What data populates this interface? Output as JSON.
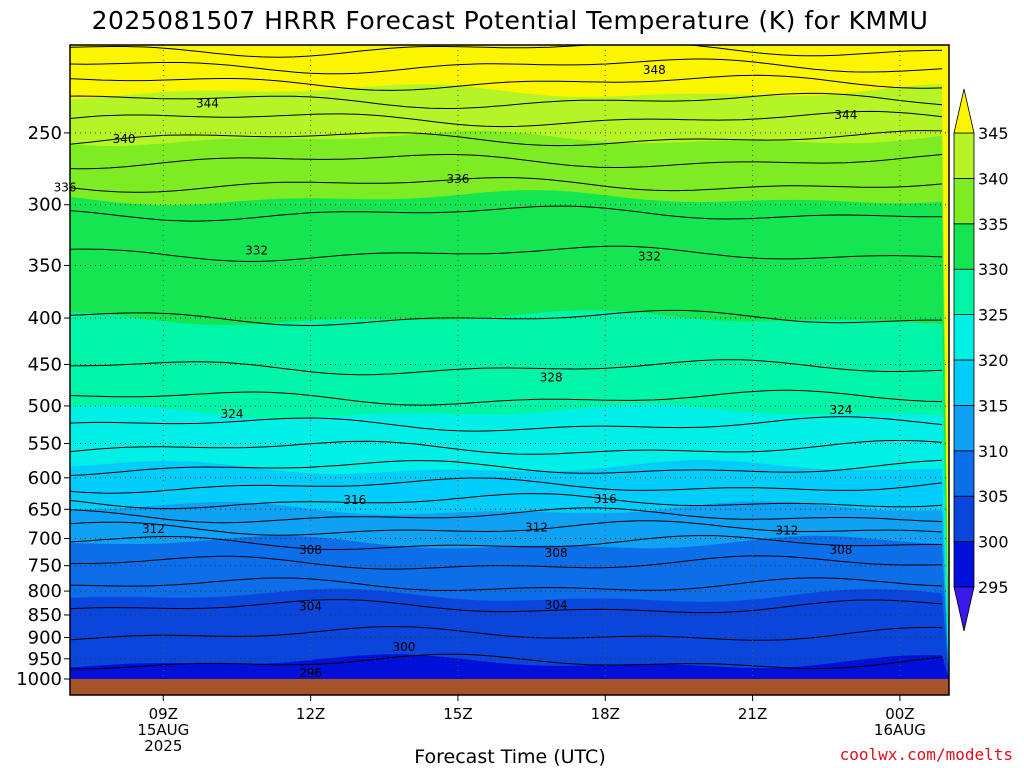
{
  "chart_data": {
    "type": "contour",
    "title": "2025081507 HRRR Forecast Potential Temperature (K) for KMMU",
    "xlabel": "Forecast Time (UTC)",
    "ylabel": "",
    "y_axis": "pressure (hPa), log scale, inverted",
    "ylim": [
      1000,
      200
    ],
    "y_ticks": [
      250,
      300,
      350,
      400,
      450,
      500,
      550,
      600,
      650,
      700,
      750,
      800,
      850,
      900,
      950,
      1000
    ],
    "x_ticks": [
      {
        "lines": [
          "09Z",
          "15AUG",
          "2025"
        ]
      },
      {
        "lines": [
          "12Z"
        ]
      },
      {
        "lines": [
          "15Z"
        ]
      },
      {
        "lines": [
          "18Z"
        ]
      },
      {
        "lines": [
          "21Z"
        ]
      },
      {
        "lines": [
          "00Z",
          "16AUG"
        ]
      }
    ],
    "x_range_hours_after_09Z": [
      -1.9,
      16.0
    ],
    "grid": "dotted",
    "colorbar": {
      "ticks": [
        295,
        300,
        305,
        310,
        315,
        320,
        325,
        330,
        335,
        340,
        345
      ],
      "bands": [
        {
          "range": "<295",
          "color": "#3a18ee"
        },
        {
          "range": "295-300",
          "color": "#0010d8"
        },
        {
          "range": "300-305",
          "color": "#0a46dc"
        },
        {
          "range": "305-310",
          "color": "#0d6eea"
        },
        {
          "range": "310-315",
          "color": "#0ea1f4"
        },
        {
          "range": "315-320",
          "color": "#00cdfa"
        },
        {
          "range": "320-325",
          "color": "#00f0e8"
        },
        {
          "range": "325-330",
          "color": "#00f6a6"
        },
        {
          "range": "330-335",
          "color": "#14e652"
        },
        {
          "range": "335-340",
          "color": "#7dec22"
        },
        {
          "range": "340-345",
          "color": "#b5f525"
        },
        {
          "range": ">345",
          "color": "#fbf500"
        }
      ]
    },
    "theta_profile_K": [
      {
        "p": 200,
        "theta": 350.5
      },
      {
        "p": 220,
        "theta": 346.0
      },
      {
        "p": 250,
        "theta": 340.5
      },
      {
        "p": 280,
        "theta": 336.5
      },
      {
        "p": 300,
        "theta": 334.5
      },
      {
        "p": 320,
        "theta": 333.0
      },
      {
        "p": 350,
        "theta": 331.5
      },
      {
        "p": 400,
        "theta": 330.0
      },
      {
        "p": 450,
        "theta": 328.2
      },
      {
        "p": 500,
        "theta": 325.5
      },
      {
        "p": 550,
        "theta": 322.5
      },
      {
        "p": 600,
        "theta": 319.0
      },
      {
        "p": 650,
        "theta": 315.0
      },
      {
        "p": 700,
        "theta": 310.5
      },
      {
        "p": 750,
        "theta": 307.8
      },
      {
        "p": 800,
        "theta": 305.5
      },
      {
        "p": 850,
        "theta": 303.3
      },
      {
        "p": 900,
        "theta": 301.8
      },
      {
        "p": 950,
        "theta": 300.2
      },
      {
        "p": 1000,
        "theta": 299.0
      }
    ],
    "contour_interval_K": 2,
    "contour_labels": [
      {
        "value": "348",
        "t": 10.0,
        "p": 213
      },
      {
        "value": "344",
        "t": 0.9,
        "p": 232
      },
      {
        "value": "344",
        "t": 13.9,
        "p": 239
      },
      {
        "value": "340",
        "t": -0.8,
        "p": 254
      },
      {
        "value": "336",
        "t": -2.0,
        "p": 287
      },
      {
        "value": "336",
        "t": 6.0,
        "p": 281
      },
      {
        "value": "332",
        "t": 1.9,
        "p": 337
      },
      {
        "value": "332",
        "t": 9.9,
        "p": 342
      },
      {
        "value": "328",
        "t": -4.1,
        "p": 451
      },
      {
        "value": "328",
        "t": 7.9,
        "p": 465
      },
      {
        "value": "324",
        "t": 1.4,
        "p": 510
      },
      {
        "value": "324",
        "t": 13.8,
        "p": 505
      },
      {
        "value": "316",
        "t": 3.9,
        "p": 635
      },
      {
        "value": "316",
        "t": 9.0,
        "p": 633
      },
      {
        "value": "312",
        "t": -0.2,
        "p": 683
      },
      {
        "value": "312",
        "t": 7.6,
        "p": 681
      },
      {
        "value": "312",
        "t": 12.7,
        "p": 686
      },
      {
        "value": "308",
        "t": 3.0,
        "p": 721
      },
      {
        "value": "308",
        "t": 8.0,
        "p": 726
      },
      {
        "value": "308",
        "t": 13.8,
        "p": 721
      },
      {
        "value": "304",
        "t": 3.0,
        "p": 832
      },
      {
        "value": "304",
        "t": 8.0,
        "p": 829
      },
      {
        "value": "300",
        "t": 4.9,
        "p": 922
      },
      {
        "value": "296",
        "t": 3.0,
        "p": 985
      }
    ],
    "terrain_color": "#a5532b"
  },
  "credit": "coolwx.com/modelts",
  "credit_color": "#e0101a"
}
